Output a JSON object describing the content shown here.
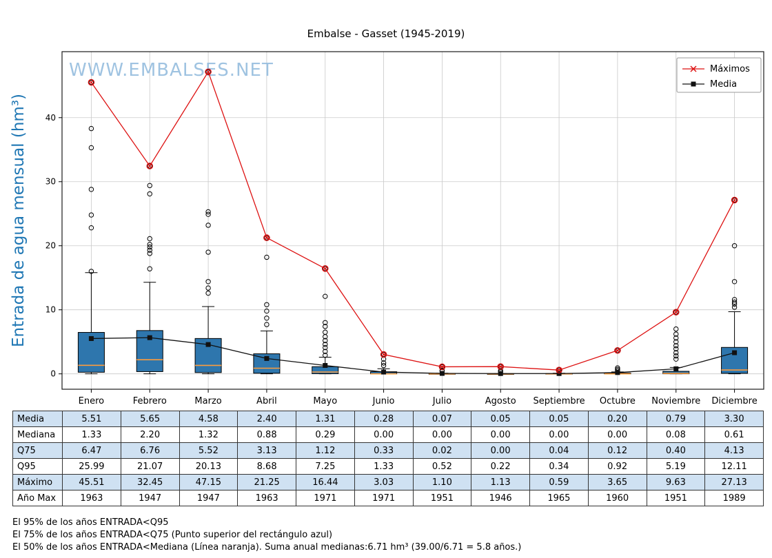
{
  "title": "Embalse - Gasset (1945-2019)",
  "watermark": "WWW.EMBALSES.NET",
  "colors": {
    "box_fill": "#2e76ad",
    "median": "#ff9c3c",
    "maximos": "#dd1111",
    "media": "#111111",
    "ylabel": "#1f77b4",
    "watermark": "#8fb9dc",
    "grid": "#c9c9c9",
    "table_row_blue": "#cfe1f2"
  },
  "chart_data": {
    "type": "boxplot",
    "title": "Embalse - Gasset (1945-2019)",
    "xlabel": "",
    "ylabel": "Entrada de agua mensual (hm³)",
    "categories": [
      "Enero",
      "Febrero",
      "Marzo",
      "Abril",
      "Mayo",
      "Junio",
      "Julio",
      "Agosto",
      "Septiembre",
      "Octubre",
      "Noviembre",
      "Diciembre"
    ],
    "yticks": [
      0,
      10,
      20,
      30,
      40
    ],
    "ylim": [
      -2.4,
      50.3
    ],
    "grid": true,
    "legend_position": "upper right",
    "series": [
      {
        "name": "Máximos",
        "type": "line",
        "marker": "x",
        "color": "#dd1111",
        "values": [
          45.51,
          32.45,
          47.15,
          21.25,
          16.44,
          3.03,
          1.1,
          1.13,
          0.59,
          3.65,
          9.63,
          27.13
        ]
      },
      {
        "name": "Media",
        "type": "line",
        "marker": "square",
        "color": "#111111",
        "values": [
          5.51,
          5.65,
          4.58,
          2.4,
          1.31,
          0.28,
          0.07,
          0.05,
          0.05,
          0.2,
          0.79,
          3.3
        ]
      }
    ],
    "boxplot": {
      "whisker_low": [
        0,
        0,
        0,
        0,
        0,
        0,
        0,
        0,
        0,
        0,
        0,
        0
      ],
      "q1": [
        0.25,
        0.35,
        0.2,
        0.1,
        0.03,
        0,
        0,
        0,
        0,
        0,
        0.01,
        0.08
      ],
      "median": [
        1.33,
        2.2,
        1.32,
        0.88,
        0.29,
        0.0,
        0.0,
        0.0,
        0.0,
        0.0,
        0.08,
        0.61
      ],
      "q3": [
        6.47,
        6.76,
        5.52,
        3.13,
        1.12,
        0.33,
        0.02,
        0.0,
        0.04,
        0.12,
        0.4,
        4.13
      ],
      "whisker_high": [
        15.8,
        14.3,
        10.5,
        6.7,
        2.6,
        0.8,
        0.1,
        0.05,
        0.1,
        0.3,
        1.0,
        9.7
      ],
      "outliers": [
        [
          45.51,
          38.3,
          35.3,
          28.8,
          24.8,
          22.8,
          16.0
        ],
        [
          32.45,
          29.4,
          28.1,
          21.1,
          20.2,
          19.8,
          19.3,
          18.8,
          16.4
        ],
        [
          47.15,
          25.3,
          24.9,
          23.2,
          19.0,
          14.4,
          13.4,
          12.6
        ],
        [
          21.25,
          18.2,
          10.8,
          9.8,
          8.7,
          7.7
        ],
        [
          16.44,
          12.1,
          8.0,
          7.4,
          6.5,
          5.8,
          5.2,
          4.6,
          4.1,
          3.5,
          2.9
        ],
        [
          3.03,
          2.3,
          1.7,
          1.3
        ],
        [
          1.1,
          0.52,
          0.4
        ],
        [
          1.13,
          0.5,
          0.3
        ],
        [
          0.59,
          0.34
        ],
        [
          3.65,
          0.92,
          0.7,
          0.5
        ],
        [
          9.63,
          7.0,
          6.2,
          5.6,
          5.0,
          4.4,
          3.9,
          3.3,
          2.8,
          2.3
        ],
        [
          27.13,
          20.0,
          14.4,
          11.6,
          11.2,
          10.9,
          10.4
        ]
      ]
    }
  },
  "legend": {
    "maximos": "Máximos",
    "media": "Media"
  },
  "table": {
    "rows": [
      {
        "label": "Media",
        "values": [
          "5.51",
          "5.65",
          "4.58",
          "2.40",
          "1.31",
          "0.28",
          "0.07",
          "0.05",
          "0.05",
          "0.20",
          "0.79",
          "3.30"
        ]
      },
      {
        "label": "Mediana",
        "values": [
          "1.33",
          "2.20",
          "1.32",
          "0.88",
          "0.29",
          "0.00",
          "0.00",
          "0.00",
          "0.00",
          "0.00",
          "0.08",
          "0.61"
        ]
      },
      {
        "label": "Q75",
        "values": [
          "6.47",
          "6.76",
          "5.52",
          "3.13",
          "1.12",
          "0.33",
          "0.02",
          "0.00",
          "0.04",
          "0.12",
          "0.40",
          "4.13"
        ]
      },
      {
        "label": "Q95",
        "values": [
          "25.99",
          "21.07",
          "20.13",
          "8.68",
          "7.25",
          "1.33",
          "0.52",
          "0.22",
          "0.34",
          "0.92",
          "5.19",
          "12.11"
        ]
      },
      {
        "label": "Máximo",
        "values": [
          "45.51",
          "32.45",
          "47.15",
          "21.25",
          "16.44",
          "3.03",
          "1.10",
          "1.13",
          "0.59",
          "3.65",
          "9.63",
          "27.13"
        ]
      },
      {
        "label": "Año Max",
        "values": [
          "1963",
          "1947",
          "1947",
          "1963",
          "1971",
          "1971",
          "1951",
          "1946",
          "1965",
          "1960",
          "1951",
          "1989"
        ]
      }
    ]
  },
  "footnotes": [
    "El 95% de los años ENTRADA<Q95",
    "El 75% de los años ENTRADA<Q75 (Punto superior del rectángulo azul)",
    "El 50% de los años ENTRADA<Mediana (Línea naranja). Suma anual medianas:6.71 hm³ (39.00/6.71 = 5.8 años.)"
  ]
}
